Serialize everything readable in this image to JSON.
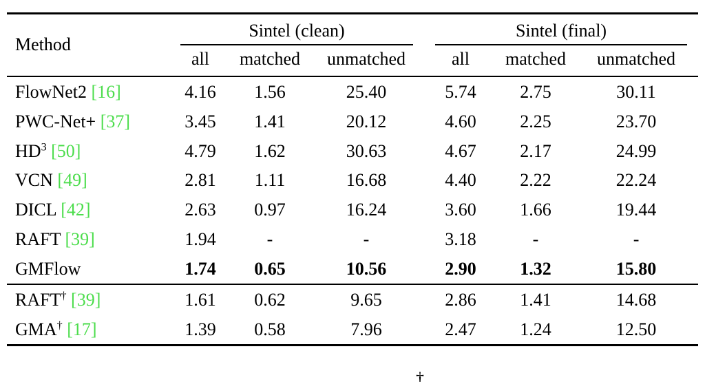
{
  "accent_green": "#4CDD4C",
  "table": {
    "method_header": "Method",
    "group_headers": [
      "Sintel (clean)",
      "Sintel (final)"
    ],
    "sub_headers": [
      "all",
      "matched",
      "unmatched",
      "all",
      "matched",
      "unmatched"
    ],
    "sections": [
      {
        "rows": [
          {
            "name": "FlowNet2",
            "sup": "",
            "cite": "[16]",
            "bold": false,
            "values": [
              "4.16",
              "1.56",
              "25.40",
              "5.74",
              "2.75",
              "30.11"
            ]
          },
          {
            "name": "PWC-Net+",
            "sup": "",
            "cite": "[37]",
            "bold": false,
            "values": [
              "3.45",
              "1.41",
              "20.12",
              "4.60",
              "2.25",
              "23.70"
            ]
          },
          {
            "name": "HD",
            "sup": "3",
            "cite": "[50]",
            "bold": false,
            "values": [
              "4.79",
              "1.62",
              "30.63",
              "4.67",
              "2.17",
              "24.99"
            ]
          },
          {
            "name": "VCN",
            "sup": "",
            "cite": "[49]",
            "bold": false,
            "values": [
              "2.81",
              "1.11",
              "16.68",
              "4.40",
              "2.22",
              "22.24"
            ]
          },
          {
            "name": "DICL",
            "sup": "",
            "cite": "[42]",
            "bold": false,
            "values": [
              "2.63",
              "0.97",
              "16.24",
              "3.60",
              "1.66",
              "19.44"
            ]
          },
          {
            "name": "RAFT",
            "sup": "",
            "cite": "[39]",
            "bold": false,
            "values": [
              "1.94",
              "-",
              "-",
              "3.18",
              "-",
              "-"
            ]
          },
          {
            "name": "GMFlow",
            "sup": "",
            "cite": "",
            "bold": true,
            "values": [
              "1.74",
              "0.65",
              "10.56",
              "2.90",
              "1.32",
              "15.80"
            ]
          }
        ]
      },
      {
        "rows": [
          {
            "name": "RAFT",
            "sup": "†",
            "cite": "[39]",
            "bold": false,
            "values": [
              "1.61",
              "0.62",
              "9.65",
              "2.86",
              "1.41",
              "14.68"
            ]
          },
          {
            "name": "GMA",
            "sup": "†",
            "cite": "[17]",
            "bold": false,
            "values": [
              "1.39",
              "0.58",
              "7.96",
              "2.47",
              "1.24",
              "12.50"
            ]
          }
        ]
      }
    ],
    "footnote_fragment": "†"
  }
}
